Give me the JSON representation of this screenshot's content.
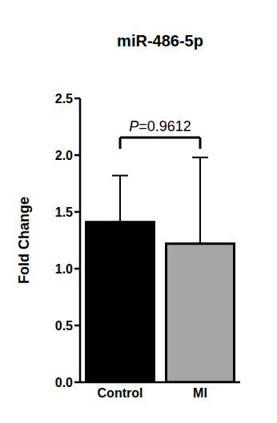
{
  "chart_data": {
    "type": "bar",
    "title": "miR-486-5p",
    "y_label": "Fold Change",
    "categories": [
      "Control",
      "MI"
    ],
    "values": [
      1.41,
      1.22
    ],
    "errors": [
      0.41,
      0.76
    ],
    "colors": [
      "#000000",
      "#a6a6a6"
    ],
    "ylim": [
      0,
      2.5
    ],
    "yticks": [
      {
        "value": 0,
        "label": "0.0"
      },
      0.5,
      {
        "value": 1,
        "label": "1.0"
      },
      1.5,
      {
        "value": 2,
        "label": "2.0"
      },
      2.5
    ],
    "annotations": [
      {
        "text": "P=0.9612",
        "between": [
          "Control",
          "MI"
        ]
      }
    ],
    "grid": false
  }
}
